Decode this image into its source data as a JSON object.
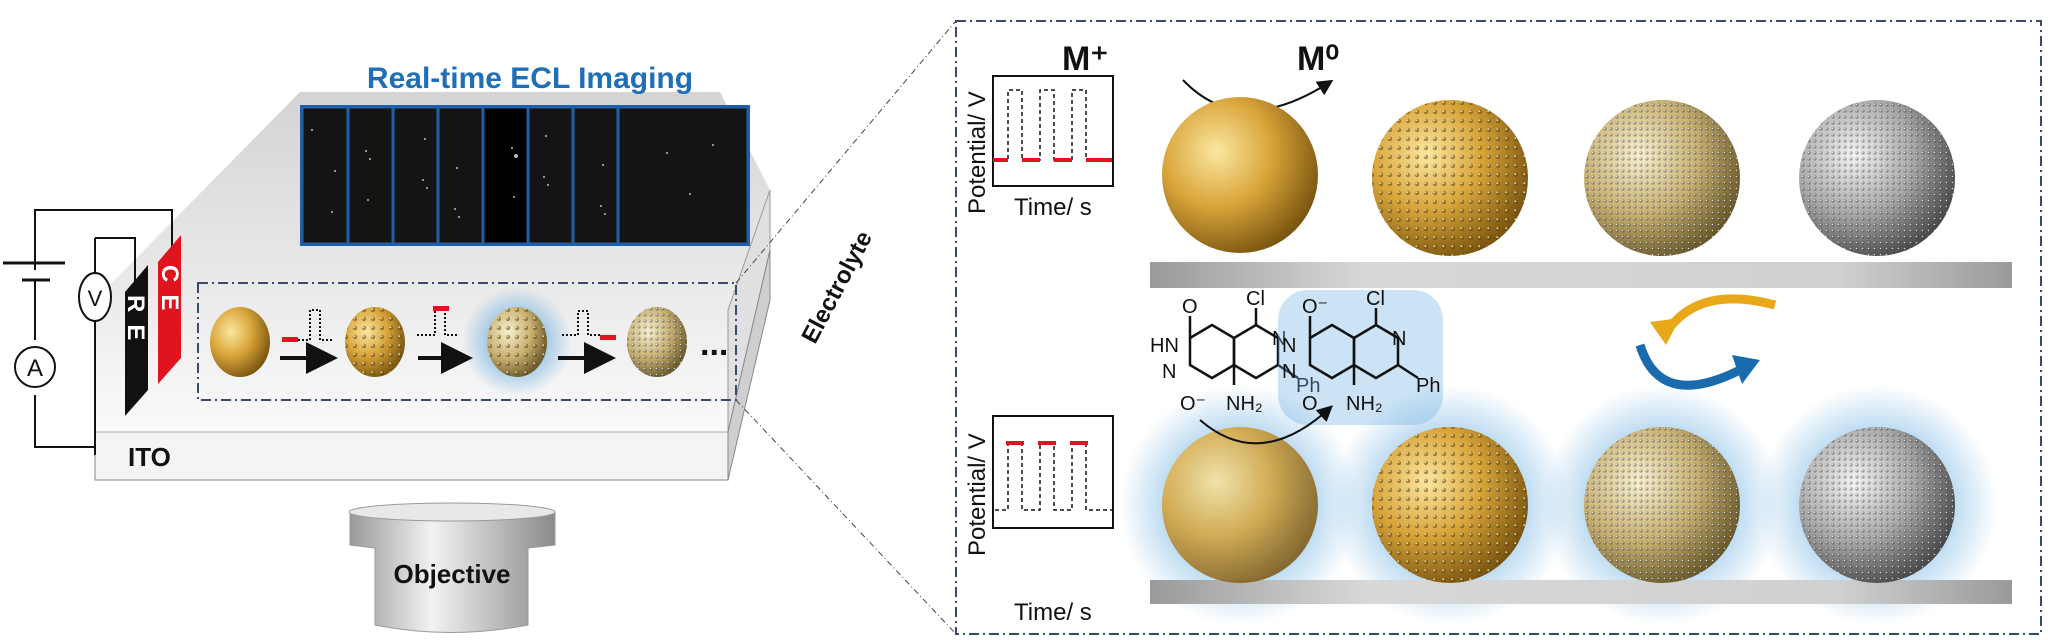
{
  "left_panel": {
    "imaging_title": "Real-time ECL Imaging",
    "electrolyte_label": "Electrolyte",
    "ito_label": "ITO",
    "objective_label": "Objective",
    "reference_electrode": "RE",
    "counter_electrode": "CE",
    "voltmeter": "V",
    "ammeter": "A",
    "ellipsis": "...",
    "frame_count": 8
  },
  "right_panel": {
    "reduction": {
      "reactant": "M⁺",
      "product": "M⁰"
    },
    "top_plot": {
      "ylabel": "Potential/ V",
      "xlabel": "Time/ s",
      "highlight": "low"
    },
    "bottom_plot": {
      "ylabel": "Potential/ V",
      "xlabel": "Time/ s",
      "highlight": "high"
    },
    "molecule": {
      "substituents": [
        "O",
        "Cl",
        "HN",
        "N",
        "N",
        "Ph",
        "O⁻",
        "NH₂"
      ],
      "excited_substituents": [
        "O⁻",
        "Cl",
        "N",
        "N",
        "N",
        "Ph",
        "O",
        "NH₂"
      ]
    }
  },
  "colors": {
    "title_blue": "#1f6fb8",
    "pulse_red": "#e0141e",
    "gold": "#d9a53a",
    "glow_blue": "#6aaee0",
    "cycle_yellow": "#e8a81a",
    "cycle_blue": "#1a6aae"
  }
}
